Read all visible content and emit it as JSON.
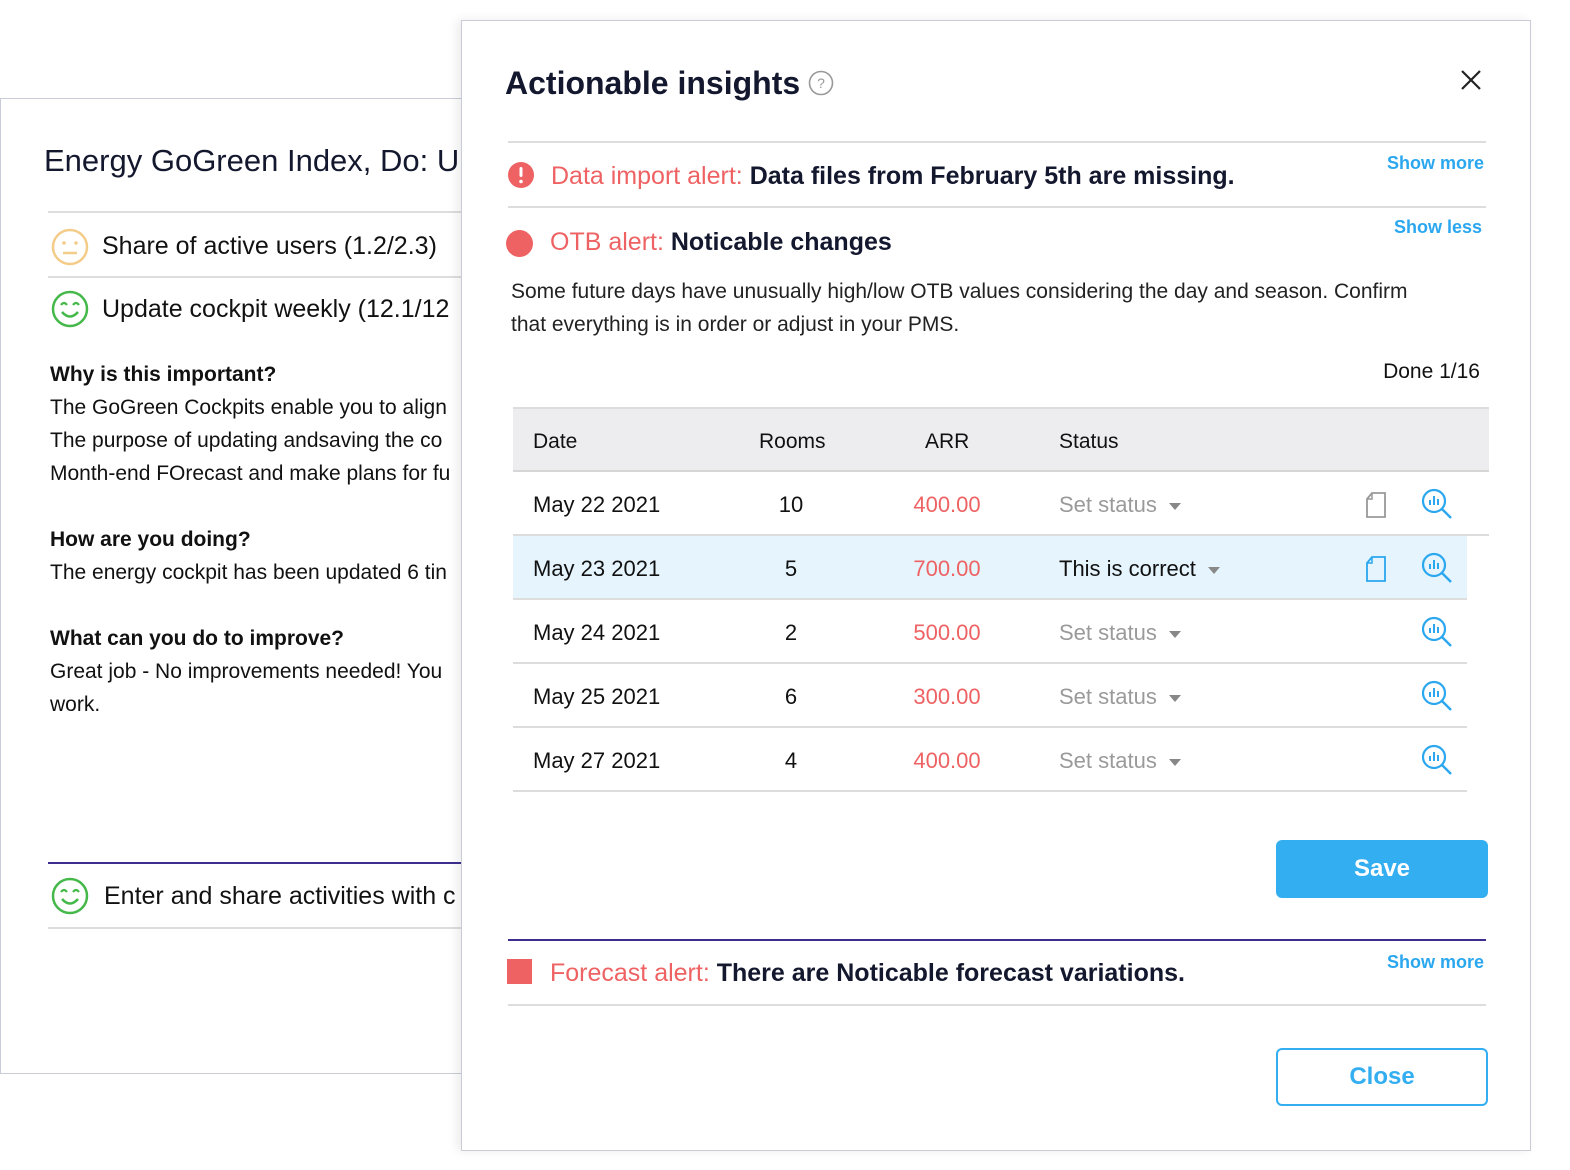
{
  "background_panel": {
    "title": "Energy GoGreen Index, Do: U",
    "kpis": [
      {
        "label": "Share of active users (1.2/2.3)",
        "icon": "neutral-face-icon"
      },
      {
        "label": "Update cockpit weekly (12.1/12",
        "icon": "smiley-face-icon"
      }
    ],
    "sections": [
      {
        "heading": "Why is this important?",
        "lines": [
          "The GoGreen Cockpits enable you to align",
          "The purpose of updating andsaving the co",
          "Month-end FOrecast and make plans for fu"
        ]
      },
      {
        "heading": "How are you doing?",
        "lines": [
          "The energy cockpit has been updated 6 tin"
        ]
      },
      {
        "heading": "What can you do to improve?",
        "lines": [
          "Great job - No improvements needed! You",
          "work."
        ]
      }
    ],
    "activity": "Enter and share activities with c"
  },
  "dialog": {
    "title": "Actionable insights",
    "alerts": {
      "data_import": {
        "label": "Data import alert:",
        "text": "Data files from February 5th are missing.",
        "toggle": "Show more"
      },
      "otb": {
        "label": "OTB alert:",
        "text": "Noticable changes",
        "toggle": "Show less",
        "description_1": "Some future days have unusually high/low OTB values considering the day and season. Confirm",
        "description_2": "that everything is in order or adjust in your PMS.",
        "progress": "Done 1/16"
      },
      "forecast": {
        "label": "Forecast alert:",
        "text": "There are Noticable forecast variations.",
        "toggle": "Show more"
      }
    },
    "table": {
      "headers": [
        "Date",
        "Rooms",
        "ARR",
        "Status"
      ],
      "rows": [
        {
          "date": "May 22 2021",
          "rooms": "10",
          "arr": "400.00",
          "status": "Set status"
        },
        {
          "date": "May 23 2021",
          "rooms": "5",
          "arr": "700.00",
          "status": "This is correct"
        },
        {
          "date": "May 24 2021",
          "rooms": "2",
          "arr": "500.00",
          "status": "Set status"
        },
        {
          "date": "May 25 2021",
          "rooms": "6",
          "arr": "300.00",
          "status": "Set status"
        },
        {
          "date": "May 27 2021",
          "rooms": "4",
          "arr": "400.00",
          "status": "Set status"
        }
      ]
    },
    "save": "Save",
    "close": "Close"
  },
  "colors": {
    "accent": "#2aa7ee",
    "alert": "#ee6263",
    "highlight": "#e5f4fd",
    "divider": "#3c2d8f"
  }
}
